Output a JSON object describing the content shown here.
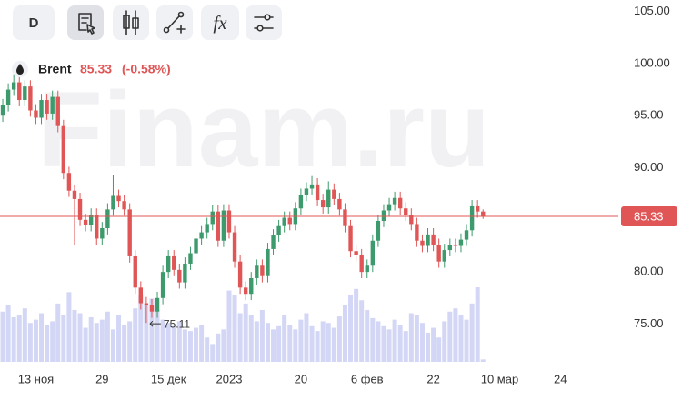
{
  "toolbar": {
    "interval": "D",
    "indicators": "fx"
  },
  "chart_data": {
    "type": "candlestick",
    "series_name": "Brent",
    "watermark": "Finam.ru",
    "last": 85.33,
    "change": {
      "value": -0.58,
      "label": "(-0.58%)"
    },
    "up_color": "#3d9a6c",
    "down_color": "#e05656",
    "volume_color": "#d3d6f5",
    "last_line_color": "#e05656",
    "grid": false,
    "ylim": [
      71.2,
      106.1
    ],
    "yticks": [
      {
        "value": 75,
        "label": "75.00"
      },
      {
        "value": 80,
        "label": "80.00"
      },
      {
        "value": 85,
        "label": "85.00"
      },
      {
        "value": 90,
        "label": "90.00"
      },
      {
        "value": 95,
        "label": "95.00"
      },
      {
        "value": 100,
        "label": "100.00"
      },
      {
        "value": 105,
        "label": "105.00"
      }
    ],
    "xlim": [
      -0.5,
      111.5
    ],
    "xticks": [
      {
        "value": 6,
        "label": "13 ноя"
      },
      {
        "value": 18,
        "label": "29"
      },
      {
        "value": 30,
        "label": "15 дек"
      },
      {
        "value": 41,
        "label": "2023"
      },
      {
        "value": 54,
        "label": "20"
      },
      {
        "value": 66,
        "label": "6 фев"
      },
      {
        "value": 78,
        "label": "22"
      },
      {
        "value": 90,
        "label": "10 мар"
      },
      {
        "value": 101,
        "label": "24"
      }
    ],
    "low_annotation_index": 26,
    "open": [
      95.0,
      96.0,
      97.5,
      98.2,
      96.5,
      97.8,
      95.5,
      94.8,
      96.5,
      95.2,
      96.8,
      94.0,
      89.5,
      87.8,
      87.0,
      85.0,
      84.5,
      85.5,
      83.2,
      84.2,
      86.0,
      87.3,
      86.8,
      86.0,
      81.5,
      78.5,
      77.0,
      76.8,
      76.2,
      77.5,
      80.0,
      81.5,
      80.2,
      79.0,
      80.8,
      81.8,
      83.2,
      83.8,
      84.6,
      85.8,
      83.0,
      85.9,
      83.8,
      81.0,
      78.5,
      77.9,
      79.4,
      80.6,
      79.6,
      82.2,
      83.5,
      84.4,
      85.2,
      84.6,
      86.1,
      87.4,
      88.0,
      88.4,
      86.9,
      86.2,
      87.9,
      87.0,
      86.0,
      84.4,
      82.0,
      81.6,
      80.0,
      80.6,
      83.0,
      84.9,
      85.9,
      86.5,
      87.1,
      86.1,
      85.5,
      84.6,
      83.0,
      82.5,
      83.6,
      82.6,
      81.0,
      82.1,
      82.6,
      82.5,
      83.1,
      84.0,
      86.3,
      85.8
    ],
    "high": [
      96.6,
      98.1,
      99.0,
      98.8,
      98.4,
      98.4,
      96.1,
      97.1,
      97.1,
      97.4,
      97.4,
      94.6,
      90.1,
      88.4,
      87.6,
      85.6,
      86.1,
      86.1,
      84.8,
      86.6,
      89.3,
      87.9,
      87.4,
      86.6,
      82.1,
      79.1,
      77.6,
      77.4,
      78.1,
      80.6,
      82.1,
      82.1,
      80.8,
      81.4,
      82.4,
      83.8,
      84.4,
      85.2,
      86.4,
      86.4,
      86.5,
      86.5,
      84.4,
      81.6,
      79.1,
      80.0,
      81.2,
      81.2,
      82.8,
      84.1,
      85.0,
      85.8,
      85.8,
      86.7,
      88.0,
      88.6,
      89.2,
      89.0,
      87.5,
      88.7,
      88.5,
      87.6,
      86.6,
      85.0,
      82.6,
      82.2,
      81.2,
      83.6,
      85.5,
      86.5,
      87.1,
      87.7,
      87.7,
      86.7,
      86.1,
      85.2,
      83.6,
      84.2,
      84.2,
      83.2,
      82.7,
      83.2,
      83.2,
      83.7,
      84.6,
      86.9,
      86.9,
      86.0
    ],
    "low": [
      94.4,
      95.4,
      96.9,
      95.9,
      95.9,
      94.9,
      94.2,
      94.2,
      94.6,
      94.6,
      93.4,
      88.9,
      87.2,
      82.6,
      84.4,
      83.9,
      83.9,
      82.6,
      82.6,
      83.6,
      85.4,
      86.2,
      85.4,
      80.9,
      77.9,
      76.4,
      75.11,
      75.6,
      75.6,
      76.9,
      79.4,
      79.6,
      78.4,
      78.4,
      80.2,
      81.2,
      82.6,
      83.2,
      84.0,
      82.4,
      82.4,
      83.2,
      80.4,
      77.9,
      77.3,
      77.3,
      78.8,
      79.0,
      79.0,
      81.6,
      82.9,
      83.8,
      84.0,
      84.0,
      85.5,
      86.8,
      87.4,
      86.3,
      85.6,
      85.6,
      86.4,
      85.4,
      83.8,
      81.4,
      81.0,
      79.4,
      79.4,
      80.0,
      82.4,
      84.3,
      85.3,
      85.9,
      85.5,
      84.9,
      84.0,
      82.4,
      81.9,
      81.9,
      82.0,
      80.4,
      80.4,
      81.5,
      81.9,
      81.9,
      82.5,
      83.4,
      85.2,
      85.1
    ],
    "close": [
      96.0,
      97.5,
      98.2,
      96.5,
      97.8,
      95.5,
      94.8,
      96.5,
      95.2,
      96.8,
      94.0,
      89.5,
      87.8,
      87.0,
      85.0,
      84.5,
      85.5,
      83.2,
      84.2,
      86.0,
      87.3,
      86.8,
      86.0,
      81.5,
      78.5,
      77.0,
      76.8,
      76.2,
      77.5,
      80.0,
      81.5,
      80.2,
      79.0,
      80.8,
      81.8,
      83.2,
      83.8,
      84.6,
      85.8,
      83.0,
      85.9,
      83.8,
      81.0,
      78.5,
      77.9,
      79.4,
      80.6,
      79.6,
      82.2,
      83.5,
      84.4,
      85.2,
      84.6,
      86.1,
      87.4,
      88.0,
      88.4,
      86.9,
      86.2,
      87.9,
      87.0,
      86.0,
      84.4,
      82.0,
      81.6,
      80.0,
      80.6,
      83.0,
      84.9,
      85.9,
      86.5,
      87.1,
      86.1,
      85.5,
      84.6,
      83.0,
      82.5,
      83.6,
      82.6,
      81.0,
      82.1,
      82.6,
      82.5,
      83.1,
      84.0,
      86.3,
      85.8,
      85.33
    ],
    "volume": [
      62,
      70,
      55,
      58,
      66,
      48,
      52,
      60,
      45,
      50,
      72,
      58,
      86,
      64,
      60,
      42,
      55,
      48,
      52,
      62,
      40,
      58,
      45,
      50,
      66,
      82,
      70,
      78,
      64,
      52,
      48,
      44,
      50,
      40,
      38,
      42,
      46,
      30,
      22,
      35,
      40,
      88,
      82,
      60,
      72,
      58,
      50,
      64,
      48,
      40,
      44,
      58,
      46,
      40,
      52,
      60,
      44,
      38,
      50,
      48,
      42,
      56,
      70,
      82,
      90,
      76,
      64,
      54,
      50,
      44,
      40,
      52,
      46,
      38,
      60,
      58,
      48,
      36,
      42,
      30,
      50,
      62,
      66,
      58,
      52,
      72,
      92,
      3
    ]
  }
}
